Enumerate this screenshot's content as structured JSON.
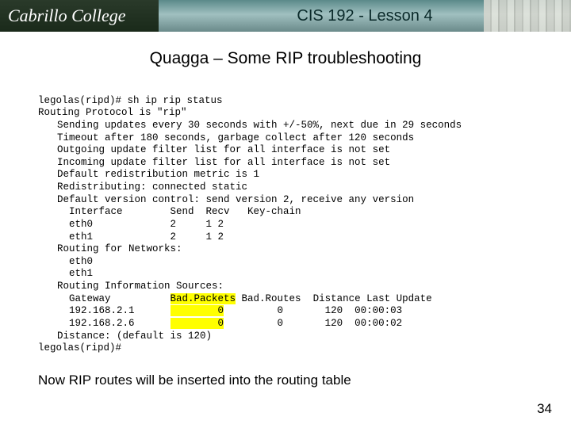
{
  "banner": {
    "logo_text": "Cabrillo College",
    "title": "CIS 192 - Lesson 4"
  },
  "subtitle": "Quagga – Some RIP troubleshooting",
  "terminal": {
    "l0": "legolas(ripd)# sh ip rip status",
    "l1": "Routing Protocol is \"rip\"",
    "l2": "Sending updates every 30 seconds with +/-50%, next due in 29 seconds",
    "l3": "Timeout after 180 seconds, garbage collect after 120 seconds",
    "l4": "Outgoing update filter list for all interface is not set",
    "l5": "Incoming update filter list for all interface is not set",
    "l6": "Default redistribution metric is 1",
    "l7": "Redistributing: connected static",
    "l8": "Default version control: send version 2, receive any version",
    "l9": "  Interface        Send  Recv   Key-chain",
    "l10": "  eth0             2     1 2",
    "l11": "  eth1             2     1 2",
    "l12": "Routing for Networks:",
    "l13": "  eth0",
    "l14": "  eth1",
    "l15": "Routing Information Sources:",
    "l16a": "  Gateway          ",
    "l16b": "Bad.Packets",
    "l16c": " Bad.Routes  Distance Last Update",
    "l17a": "  192.168.2.1      ",
    "l17b": "        0",
    "l17c": "         0       120  00:00:03",
    "l18a": "  192.168.2.6      ",
    "l18b": "        0",
    "l18c": "         0       120  00:00:02",
    "l19": "Distance: (default is 120)",
    "l20": "legolas(ripd)#"
  },
  "highlight_color": "#ffff00",
  "caption": "Now RIP routes will be inserted into the routing table",
  "page_number": "34"
}
